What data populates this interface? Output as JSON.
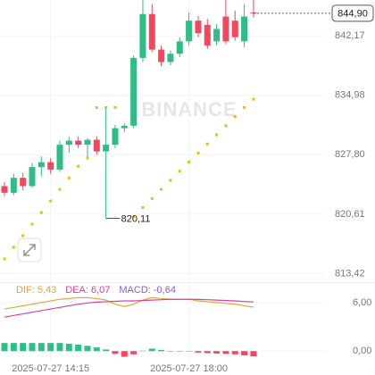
{
  "chart_data": [
    {
      "type": "candlestick",
      "watermark": "BINANCE",
      "categories": [
        null,
        null,
        null,
        null,
        null,
        "2025-07-27 14:15",
        null,
        null,
        null,
        null,
        null,
        null,
        null,
        null,
        null,
        null,
        null,
        null,
        null,
        null,
        "2025-07-27 18:00",
        null,
        null,
        null,
        null,
        null,
        null,
        null
      ],
      "open": [
        824.0,
        823.2,
        825.0,
        824.0,
        826.3,
        826.9,
        826.0,
        829.0,
        829.5,
        829.0,
        829.6,
        828.2,
        829.0,
        831.0,
        831.3,
        839.5,
        844.8,
        840.5,
        839.0,
        840.0,
        841.5,
        844.0,
        843.5,
        841.5,
        844.5,
        844.0,
        841.5,
        845.0
      ],
      "high": [
        824.5,
        825.5,
        825.6,
        826.8,
        827.6,
        827.4,
        829.5,
        830.0,
        830.0,
        829.8,
        830.0,
        833.6,
        831.4,
        831.6,
        839.8,
        846.5,
        846.0,
        841.0,
        840.4,
        842.0,
        845.0,
        844.6,
        844.2,
        843.6,
        846.5,
        845.2,
        846.0,
        846.5
      ],
      "low": [
        822.8,
        822.9,
        823.5,
        823.8,
        825.2,
        825.5,
        825.7,
        828.0,
        828.6,
        827.5,
        827.8,
        820.11,
        828.6,
        830.5,
        831.0,
        839.0,
        840.2,
        838.5,
        838.6,
        839.6,
        841.0,
        842.0,
        840.6,
        841.0,
        841.2,
        841.6,
        840.8,
        844.4
      ],
      "close": [
        823.2,
        825.0,
        824.0,
        826.3,
        826.9,
        826.0,
        829.0,
        829.5,
        829.0,
        829.6,
        828.2,
        829.0,
        831.0,
        831.3,
        839.5,
        844.8,
        840.5,
        839.0,
        840.0,
        841.5,
        844.0,
        842.5,
        841.0,
        843.0,
        841.5,
        842.0,
        844.5,
        844.9
      ],
      "sar": [
        815.2,
        816.6,
        818.0,
        819.4,
        820.8,
        822.2,
        823.6,
        825.0,
        826.4,
        827.4,
        833.5,
        833.5,
        833.5,
        null,
        820.3,
        821.4,
        822.5,
        823.6,
        824.7,
        825.8,
        826.9,
        828.0,
        829.1,
        830.2,
        831.3,
        832.4,
        833.5,
        834.5
      ],
      "up_color": "#2ebd85",
      "down_color": "#f6465d",
      "sar_color": "#f0b90b",
      "ylim": [
        812.5,
        846.5
      ],
      "yticks": [
        {
          "value": 813.42,
          "label": "813,42"
        },
        {
          "value": 820.61,
          "label": "820,61"
        },
        {
          "value": 827.8,
          "label": "827,80"
        },
        {
          "value": 834.98,
          "label": "834,98"
        },
        {
          "value": 842.17,
          "label": "842,17"
        }
      ],
      "low_label": {
        "value": 820.11,
        "label": "820,11"
      },
      "last_price": {
        "value": 844.9,
        "label": "844,90"
      },
      "grid": true
    },
    {
      "type": "macd",
      "series": [
        {
          "name": "DIF",
          "legend_label": "DIF: 5,43",
          "color": "#e8a33c",
          "values": [
            5.2,
            5.4,
            5.6,
            5.8,
            6.0,
            6.2,
            6.4,
            6.5,
            6.6,
            6.6,
            6.5,
            6.3,
            5.8,
            5.5,
            5.8,
            6.3,
            6.6,
            6.5,
            6.4,
            6.4,
            6.4,
            6.2,
            6.1,
            6.0,
            5.9,
            5.8,
            5.6,
            5.43
          ]
        },
        {
          "name": "DEA",
          "legend_label": "DEA: 6,07",
          "color": "#d6409f",
          "values": [
            4.2,
            4.4,
            4.6,
            4.8,
            5.0,
            5.2,
            5.4,
            5.6,
            5.8,
            5.95,
            6.05,
            6.1,
            6.15,
            6.2,
            6.2,
            6.25,
            6.3,
            6.35,
            6.4,
            6.4,
            6.4,
            6.38,
            6.35,
            6.3,
            6.25,
            6.2,
            6.13,
            6.07
          ]
        },
        {
          "name": "MACD",
          "legend_label": "MACD: -0,64",
          "color": "#8a5cd6",
          "type": "bar",
          "values": [
            1.0,
            1.0,
            1.0,
            1.0,
            1.0,
            1.0,
            1.0,
            0.9,
            0.8,
            0.65,
            0.45,
            0.2,
            -0.35,
            -0.7,
            -0.4,
            0.05,
            0.3,
            0.15,
            0.0,
            0.0,
            0.0,
            -0.18,
            -0.25,
            -0.3,
            -0.35,
            -0.4,
            -0.53,
            -0.64
          ]
        }
      ],
      "ylim": [
        -1.3,
        8.3
      ],
      "yticks": [
        {
          "value": 0,
          "label": "0,00"
        },
        {
          "value": 6,
          "label": "6,00"
        }
      ]
    }
  ]
}
